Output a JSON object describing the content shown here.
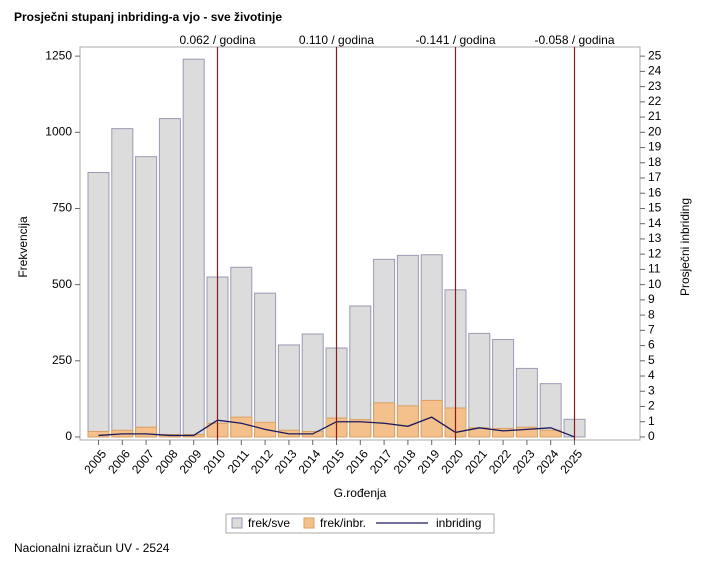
{
  "chart_data": {
    "type": "bar",
    "title": "Prosječni stupanj inbriding-a vjo - sve životinje",
    "footnote": "Nacionalni izračun UV - 2524",
    "xlabel": "G.rođenja",
    "ylabel": "Frekvencija",
    "y2label": "Prosječni inbriding",
    "categories": [
      "2005",
      "2006",
      "2007",
      "2008",
      "2009",
      "2010",
      "2011",
      "2012",
      "2013",
      "2014",
      "2015",
      "2016",
      "2017",
      "2018",
      "2019",
      "2020",
      "2021",
      "2022",
      "2023",
      "2024",
      "2025"
    ],
    "series": [
      {
        "name": "frek/sve",
        "type": "bar",
        "color": "#dcdcdc",
        "stroke": "#9a9ab4",
        "values": [
          868,
          1012,
          920,
          1045,
          1240,
          525,
          557,
          472,
          302,
          338,
          292,
          430,
          583,
          596,
          598,
          483,
          340,
          320,
          225,
          175,
          58
        ]
      },
      {
        "name": "frek/inbr.",
        "type": "bar",
        "color": "#f4c08c",
        "stroke": "#d9a060",
        "values": [
          18,
          22,
          32,
          8,
          8,
          45,
          65,
          48,
          22,
          18,
          62,
          57,
          112,
          102,
          120,
          95,
          30,
          28,
          32,
          22,
          0
        ]
      },
      {
        "name": "inbriding",
        "type": "line",
        "axis": "y2",
        "color": "#1a1a5e",
        "values": [
          0.1,
          0.2,
          0.2,
          0.1,
          0.1,
          1.1,
          0.9,
          0.5,
          0.2,
          0.2,
          1.0,
          1.0,
          0.9,
          0.7,
          1.3,
          0.3,
          0.6,
          0.4,
          0.5,
          0.6,
          0.0
        ]
      }
    ],
    "trend_lines": [
      {
        "x": "2010",
        "label": "0.062 / godina"
      },
      {
        "x": "2015",
        "label": "0.110 / godina"
      },
      {
        "x": "2020",
        "label": "-0.141 / godina"
      },
      {
        "x": "2025",
        "label": "-0.058 / godina"
      }
    ],
    "trend_color": "#8b1a1a",
    "ylim": [
      -10,
      1280
    ],
    "yticks": [
      0,
      250,
      500,
      750,
      1000,
      1250
    ],
    "y2lim": [
      -0.2,
      25.6
    ],
    "y2ticks": [
      0,
      1,
      2,
      3,
      4,
      5,
      6,
      7,
      8,
      9,
      10,
      11,
      12,
      13,
      14,
      15,
      16,
      17,
      18,
      19,
      20,
      21,
      22,
      23,
      24,
      25
    ],
    "legend": "bottom"
  }
}
